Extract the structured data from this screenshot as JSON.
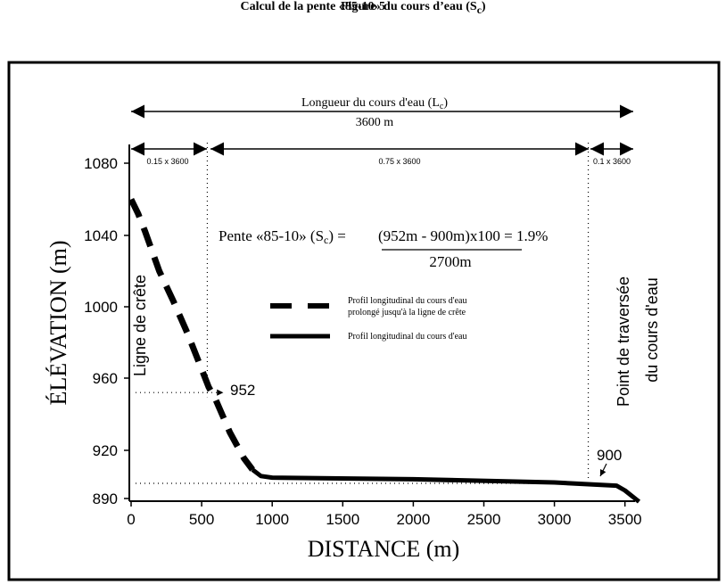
{
  "figure": {
    "number": "Figure 5",
    "caption_main": "Calcul de la pente «85-10» du cours d’eau (S",
    "caption_sub": "c",
    "caption_end": ")"
  },
  "chart_data": {
    "type": "line",
    "xlabel": "DISTANCE (m)",
    "ylabel": "ÉLÉVATION (m)",
    "xlim": [
      0,
      3600
    ],
    "ylim": [
      890,
      1080
    ],
    "x_ticks": [
      "0",
      "500",
      "1000",
      "1500",
      "2000",
      "2500",
      "3000",
      "3500"
    ],
    "y_ticks": [
      "1080",
      "1040",
      "1000",
      "960",
      "920",
      "890"
    ],
    "series": [
      {
        "name": "Profil longitudinal du cours d'eau prolongé jusqu'à la ligne de crête",
        "style": "dashed",
        "x": [
          0,
          50,
          100,
          200,
          300,
          400,
          500,
          550,
          600,
          700,
          800,
          860
        ],
        "y": [
          1060,
          1052,
          1042,
          1020,
          1003,
          985,
          965,
          955,
          948,
          930,
          915,
          908
        ]
      },
      {
        "name": "Profil longitudinal du cours d'eau",
        "style": "solid",
        "x": [
          860,
          920,
          1000,
          2000,
          3000,
          3440,
          3500,
          3600
        ],
        "y": [
          908,
          904,
          903,
          902,
          900,
          898,
          895,
          888
        ]
      }
    ],
    "legend": {
      "dashed_line1": "Profil longitudinal du cours d'eau",
      "dashed_line2": "prolongé jusqu'à la ligne de crête",
      "solid": "Profil longitudinal du cours d'eau"
    },
    "formula": {
      "lhs_main": "Pente «85-10» (S",
      "lhs_sub": "c",
      "lhs_end": ") =",
      "numerator": "(952m - 900m)x100 = 1.9%",
      "denominator": "2700m"
    },
    "annotations": {
      "length_main": "Longueur du cours d'eau (L",
      "length_sub": "c",
      "length_end": ")",
      "length_value": "3600 m",
      "seg1": "0.15 x 3600",
      "seg2": "0.75 x 3600",
      "seg3": "0.1 x 3600",
      "point_952": "952",
      "point_900": "900",
      "ligne_crete": "Ligne de crête",
      "traversee_1": "Point de traversée",
      "traversee_2": "du cours d'eau"
    },
    "markers": {
      "x_15": 540,
      "x_85": 3240,
      "y_952": 952,
      "y_900": 900
    }
  }
}
